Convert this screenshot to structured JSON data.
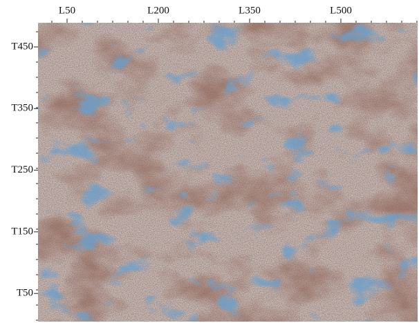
{
  "axes": {
    "top_labels": [
      "L50",
      "L200",
      "L350",
      "L500"
    ],
    "left_labels": [
      "T450",
      "T350",
      "T250",
      "T150",
      "T50"
    ]
  }
}
